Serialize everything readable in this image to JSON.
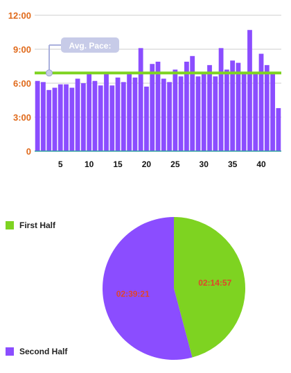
{
  "colors": {
    "bar": "#8b4dff",
    "avg_line": "#7ed321",
    "axis_labels": "#e06a1b",
    "gridline": "#cccccc",
    "callout_bg": "#c7cbe8",
    "callout_text": "#ffffff",
    "first_half": "#7ed321",
    "second_half": "#8b4dff",
    "pie_label": "#e0452b"
  },
  "chart_data": [
    {
      "type": "bar",
      "ylabel_format": "mm:ss",
      "ylim": [
        0,
        12
      ],
      "y_ticks": [
        "0",
        "3:00",
        "6:00",
        "9:00",
        "12:00"
      ],
      "x_ticks": [
        "5",
        "10",
        "15",
        "20",
        "25",
        "30",
        "35",
        "40"
      ],
      "grid": true,
      "categories": [
        1,
        2,
        3,
        4,
        5,
        6,
        7,
        8,
        9,
        10,
        11,
        12,
        13,
        14,
        15,
        16,
        17,
        18,
        19,
        20,
        21,
        22,
        23,
        24,
        25,
        26,
        27,
        28,
        29,
        30,
        31,
        32,
        33,
        34,
        35,
        36,
        37,
        38,
        39,
        40,
        41,
        42,
        43
      ],
      "values": [
        6.2,
        6.1,
        5.4,
        5.6,
        5.9,
        5.9,
        5.6,
        6.4,
        6.0,
        6.9,
        6.2,
        5.8,
        6.8,
        5.8,
        6.5,
        6.1,
        6.8,
        6.5,
        9.1,
        5.7,
        7.7,
        7.9,
        6.4,
        6.1,
        7.2,
        6.6,
        7.9,
        8.4,
        6.6,
        6.9,
        7.6,
        6.6,
        9.1,
        7.2,
        8.0,
        7.8,
        6.9,
        10.7,
        6.8,
        8.6,
        7.6,
        6.8,
        3.8
      ],
      "avg_line": 6.9,
      "annotation": "Avg. Pace:"
    },
    {
      "type": "pie",
      "slices": [
        {
          "name": "First Half",
          "label": "02:14:57",
          "value": 8097
        },
        {
          "name": "Second Half",
          "label": "02:39:21",
          "value": 9561
        }
      ]
    }
  ]
}
